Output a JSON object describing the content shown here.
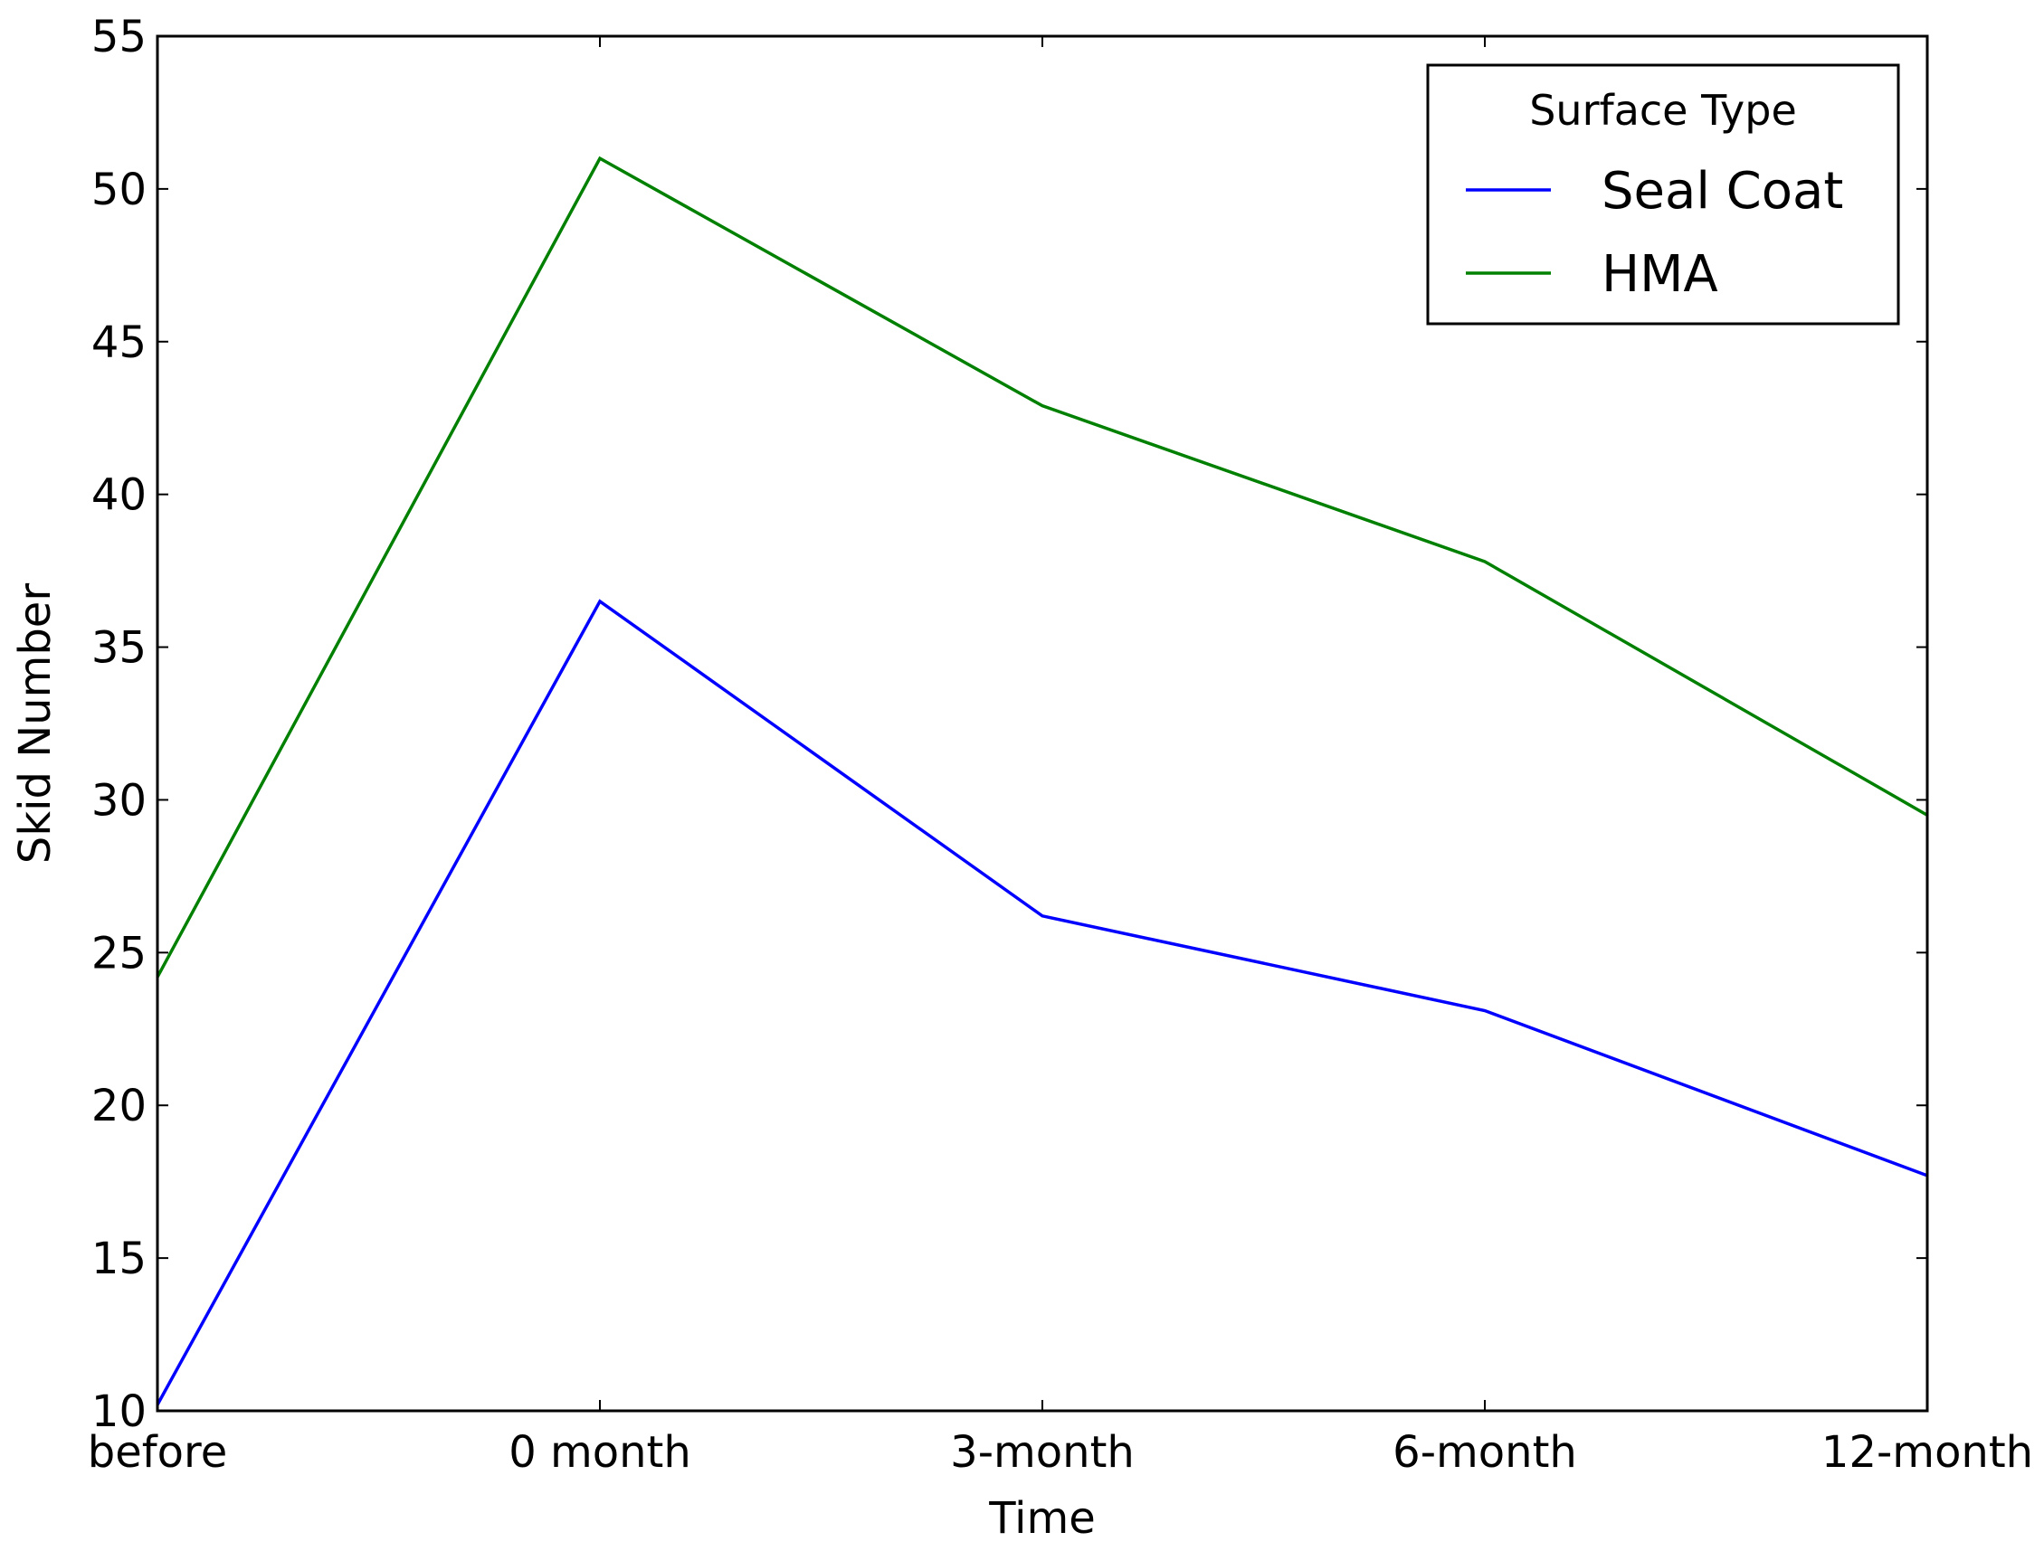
{
  "chart_data": {
    "type": "line",
    "xlabel": "Time",
    "ylabel": "Skid Number",
    "categories": [
      "before",
      "0 month",
      "3-month",
      "6-month",
      "12-month"
    ],
    "ylim": [
      10,
      55
    ],
    "yticks": [
      10,
      15,
      20,
      25,
      30,
      35,
      40,
      45,
      50,
      55
    ],
    "grid": false,
    "legend": {
      "title": "Surface Type",
      "placement": "top-right"
    },
    "series": [
      {
        "name": "Seal Coat",
        "color": "#0000ff",
        "values": [
          10.2,
          36.5,
          26.2,
          23.1,
          17.7
        ]
      },
      {
        "name": "HMA",
        "color": "#008000",
        "values": [
          24.2,
          51.0,
          42.9,
          37.8,
          29.5
        ]
      }
    ]
  }
}
